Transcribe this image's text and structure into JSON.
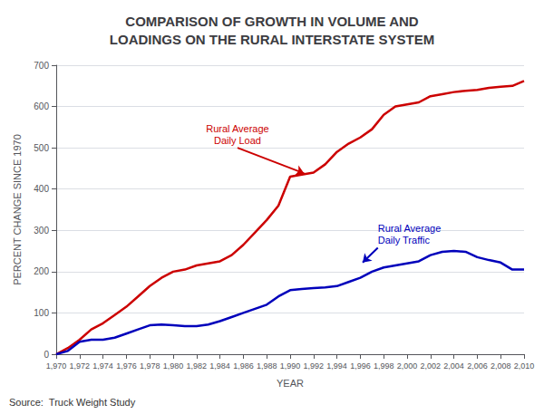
{
  "chart_data": {
    "type": "line",
    "title": "COMPARISON OF GROWTH IN VOLUME AND\nLOADINGS ON THE RURAL INTERSTATE SYSTEM",
    "xlabel": "YEAR",
    "ylabel": "PERCENT CHANGE SINCE 1970",
    "x": [
      1970,
      1971,
      1972,
      1973,
      1974,
      1975,
      1976,
      1977,
      1978,
      1979,
      1980,
      1981,
      1982,
      1983,
      1984,
      1985,
      1986,
      1987,
      1988,
      1989,
      1990,
      1991,
      1992,
      1993,
      1994,
      1995,
      1996,
      1997,
      1998,
      1999,
      2000,
      2001,
      2002,
      2003,
      2004,
      2005,
      2006,
      2007,
      2008,
      2009,
      2010
    ],
    "series": [
      {
        "color": "#cc0000",
        "values": [
          0,
          15,
          35,
          60,
          75,
          95,
          115,
          140,
          165,
          185,
          200,
          205,
          215,
          220,
          225,
          240,
          265,
          295,
          325,
          360,
          430,
          435,
          440,
          460,
          490,
          510,
          525,
          545,
          580,
          600,
          605,
          610,
          625,
          630,
          635,
          638,
          640,
          645,
          648,
          650,
          662
        ]
      },
      {
        "color": "#0000bb",
        "values": [
          0,
          8,
          30,
          35,
          35,
          40,
          50,
          60,
          70,
          72,
          70,
          68,
          68,
          72,
          80,
          90,
          100,
          110,
          120,
          140,
          155,
          158,
          160,
          162,
          165,
          175,
          185,
          200,
          210,
          215,
          220,
          225,
          240,
          248,
          250,
          248,
          235,
          228,
          222,
          205,
          205
        ]
      }
    ],
    "xlim": [
      1970,
      2010
    ],
    "xticks": [
      1970,
      1972,
      1974,
      1976,
      1978,
      1980,
      1982,
      1984,
      1986,
      1988,
      1990,
      1992,
      1994,
      1996,
      1998,
      2000,
      2002,
      2004,
      2006,
      2008,
      2010
    ],
    "ylim": [
      0,
      700
    ],
    "yticks": [
      0,
      100,
      200,
      300,
      400,
      500,
      600,
      700
    ],
    "grid": true,
    "annotations": [
      {
        "text": "Rural Average\nDaily Load",
        "x": 1991.2,
        "y": 438,
        "text_xy": [
          1985.5,
          500
        ],
        "color": "#cc0000"
      },
      {
        "text": "Rural Average\nDaily Traffic",
        "x": 1996.2,
        "y": 222,
        "text_xy": [
          1997.5,
          258
        ],
        "color": "#0000bb"
      },
      {
        "text": "Source:  Truck Weight Study"
      }
    ]
  }
}
